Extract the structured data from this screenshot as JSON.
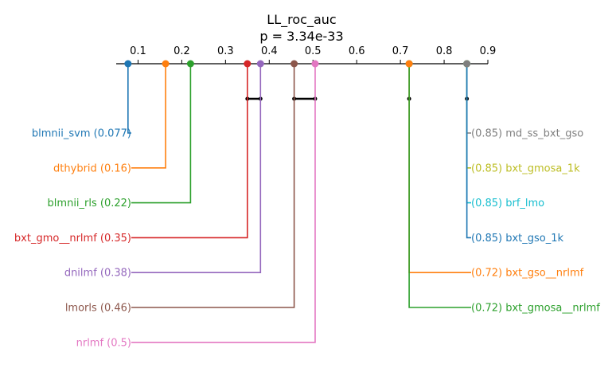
{
  "chart_data": {
    "type": "critical-difference",
    "title": "LL_roc_auc",
    "subtitle": "p = 3.34e-33",
    "axis": {
      "range": [
        0.05,
        0.9
      ],
      "ticks": [
        0.1,
        0.2,
        0.3,
        0.4,
        0.5,
        0.6,
        0.7,
        0.8,
        0.9
      ],
      "tick_labels": [
        "0.1",
        "0.2",
        "0.3",
        "0.4",
        "0.5",
        "0.6",
        "0.7",
        "0.8",
        "0.9"
      ]
    },
    "left": [
      {
        "name": "blmnii_svm",
        "value": 0.077,
        "label": "blmnii_svm (0.077)",
        "color": "#1f77b4"
      },
      {
        "name": "dthybrid",
        "value": 0.163,
        "label": "dthybrid (0.16)",
        "color": "#ff7f0e"
      },
      {
        "name": "blmnii_rls",
        "value": 0.22,
        "label": "blmnii_rls (0.22)",
        "color": "#2ca02c"
      },
      {
        "name": "bxt_gmo__nrlmf",
        "value": 0.35,
        "label": "bxt_gmo__nrlmf (0.35)",
        "color": "#d62728"
      },
      {
        "name": "dnilmf",
        "value": 0.38,
        "label": "dnilmf (0.38)",
        "color": "#9467bd"
      },
      {
        "name": "lmorls",
        "value": 0.457,
        "label": "lmorls (0.46)",
        "color": "#8c564b"
      },
      {
        "name": "nrlmf",
        "value": 0.505,
        "label": "nrlmf (0.5)",
        "color": "#e377c2"
      }
    ],
    "right": [
      {
        "name": "md_ss_bxt_gso",
        "value": 0.852,
        "label": "(0.85) md_ss_bxt_gso",
        "color": "#7f7f7f"
      },
      {
        "name": "bxt_gmosa_1k",
        "value": 0.852,
        "label": "(0.85) bxt_gmosa_1k",
        "color": "#bcbd22"
      },
      {
        "name": "brf_lmo",
        "value": 0.852,
        "label": "(0.85) brf_lmo",
        "color": "#17becf"
      },
      {
        "name": "bxt_gso_1k",
        "value": 0.852,
        "label": "(0.85) bxt_gso_1k",
        "color": "#1f77b4"
      },
      {
        "name": "bxt_gso__nrlmf",
        "value": 0.72,
        "label": "(0.72) bxt_gso__nrlmf",
        "color": "#ff7f0e"
      },
      {
        "name": "bxt_gmosa__nrlmf",
        "value": 0.72,
        "label": "(0.72) bxt_gmosa__nrlmf",
        "color": "#2ca02c"
      }
    ],
    "cliques": [
      [
        0.35,
        0.38
      ],
      [
        0.457,
        0.505
      ],
      [
        0.72,
        0.72
      ],
      [
        0.852,
        0.852
      ]
    ],
    "grid": false,
    "legend": "none"
  }
}
